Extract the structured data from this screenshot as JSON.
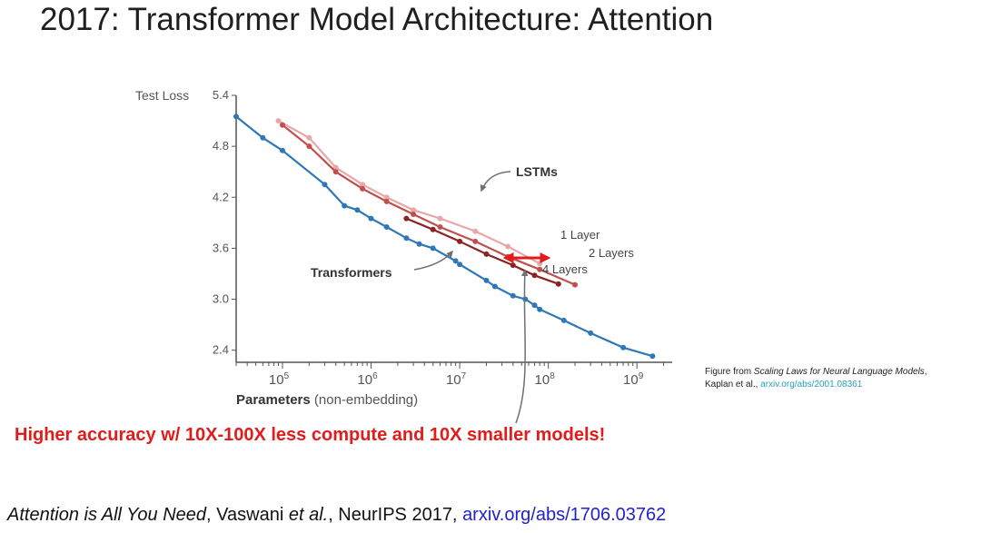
{
  "slide": {
    "title": "2017: Transformer Model Architecture: Attention",
    "highlight": "Higher accuracy w/ 10X-100X less compute and 10X smaller models!",
    "caption": {
      "prefix": "Figure from ",
      "paper_title": "Scaling Laws for Neural Language Models",
      "comma": ",",
      "authors": "Kaplan et al., ",
      "link": "arxiv.org/abs/2001.08361"
    },
    "citation": {
      "paper_title": "Attention is All You Need",
      "sep1": ", Vaswani ",
      "et_al": "et al.",
      "venue": ", NeurIPS 2017, ",
      "link": "arxiv.org/abs/1706.03762"
    }
  },
  "chart_data": {
    "type": "line",
    "xscale": "log",
    "ylabel_prefix": "Test Loss",
    "xlabel_main": "Parameters",
    "xlabel_suffix": "(non-embedding)",
    "xticks": [
      {
        "value": 100000,
        "base": "10",
        "exp": "5"
      },
      {
        "value": 1000000,
        "base": "10",
        "exp": "6"
      },
      {
        "value": 10000000,
        "base": "10",
        "exp": "7"
      },
      {
        "value": 100000000,
        "base": "10",
        "exp": "8"
      },
      {
        "value": 1000000000,
        "base": "10",
        "exp": "9"
      }
    ],
    "yticks": [
      "5.4",
      "4.8",
      "4.2",
      "3.6",
      "3.0",
      "2.4"
    ],
    "xlim": [
      30000,
      2500000000
    ],
    "ylim": [
      2.3,
      5.4
    ],
    "series": [
      {
        "name": "Transformers",
        "color": "#2e78b7",
        "x": [
          30000,
          60000,
          100000,
          300000,
          500000,
          700000,
          1000000,
          1500000,
          2500000,
          3500000,
          5000000,
          9000000,
          10000000,
          20000000,
          25000000,
          40000000,
          55000000,
          70000000,
          80000000,
          150000000,
          300000000,
          700000000,
          1500000000
        ],
        "y": [
          5.15,
          4.9,
          4.75,
          4.35,
          4.1,
          4.05,
          3.95,
          3.85,
          3.72,
          3.65,
          3.6,
          3.45,
          3.41,
          3.22,
          3.15,
          3.04,
          3.0,
          2.93,
          2.88,
          2.75,
          2.6,
          2.43,
          2.33
        ]
      },
      {
        "name": "1 Layer",
        "color": "#e8a8a8",
        "x": [
          90000,
          200000,
          400000,
          800000,
          1500000,
          3000000,
          6000000,
          15000000,
          35000000,
          80000000
        ],
        "y": [
          5.1,
          4.9,
          4.55,
          4.35,
          4.2,
          4.05,
          3.95,
          3.8,
          3.62,
          3.42
        ]
      },
      {
        "name": "2 Layers",
        "color": "#c0504d",
        "x": [
          100000,
          200000,
          400000,
          800000,
          1500000,
          3000000,
          6000000,
          15000000,
          35000000,
          80000000,
          200000000
        ],
        "y": [
          5.05,
          4.8,
          4.5,
          4.3,
          4.15,
          4.0,
          3.85,
          3.68,
          3.5,
          3.35,
          3.17
        ]
      },
      {
        "name": "4 Layers",
        "color": "#8b2323",
        "x": [
          2500000,
          5000000,
          10000000,
          20000000,
          40000000,
          70000000,
          130000000
        ],
        "y": [
          3.95,
          3.82,
          3.68,
          3.53,
          3.4,
          3.28,
          3.18
        ]
      }
    ],
    "annotations": {
      "lstms": "LSTMs",
      "transformers": "Transformers"
    },
    "colors": {
      "arrow_red": "#e21b1b",
      "arrow_gray": "#707070",
      "axis": "#555555"
    }
  }
}
